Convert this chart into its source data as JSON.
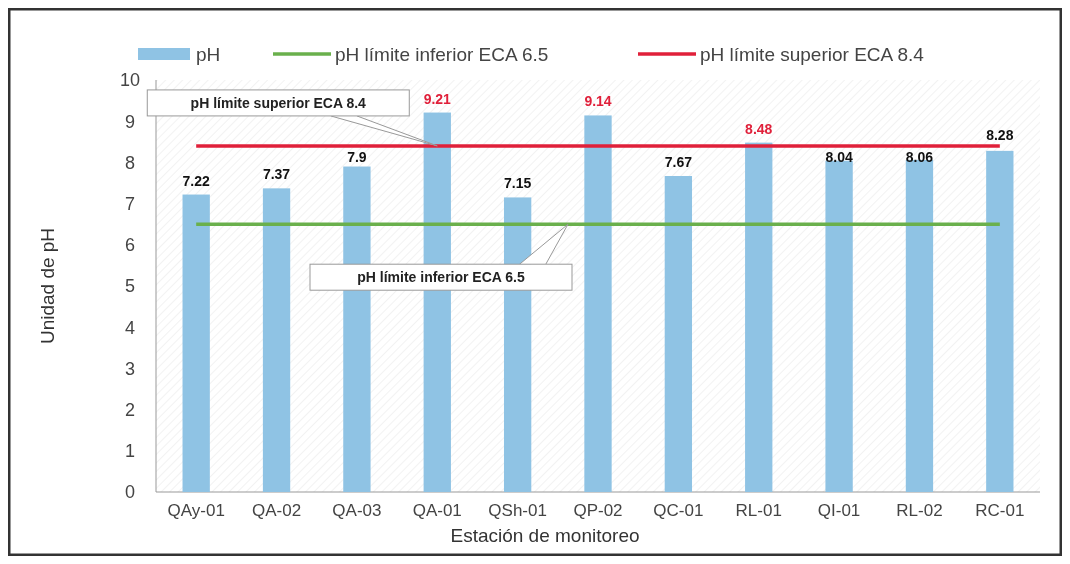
{
  "chart_data": {
    "type": "bar",
    "xlabel": "Estación de monitoreo",
    "ylabel": "Unidad de pH",
    "categories": [
      "QAy-01",
      "QA-02",
      "QA-03",
      "QA-01",
      "QSh-01",
      "QP-02",
      "QC-01",
      "RL-01",
      "QI-01",
      "RL-02",
      "RC-01"
    ],
    "series": [
      {
        "name": "pH",
        "color": "#8fc3e4",
        "values": [
          7.22,
          7.37,
          7.9,
          9.21,
          7.15,
          9.14,
          7.67,
          8.48,
          8.04,
          8.06,
          8.28
        ],
        "value_labels": [
          "7.22",
          "7.37",
          "7.9",
          "9.21",
          "7.15",
          "9.14",
          "7.67",
          "8.48",
          "8.04",
          "8.06",
          "8.28"
        ]
      },
      {
        "name": "pH límite inferior ECA 6.5",
        "type": "line",
        "color": "#6ab04c",
        "values": [
          6.5,
          6.5,
          6.5,
          6.5,
          6.5,
          6.5,
          6.5,
          6.5,
          6.5,
          6.5,
          6.5
        ]
      },
      {
        "name": "pH límite superior ECA 8.4",
        "type": "line",
        "color": "#e0203a",
        "values": [
          8.4,
          8.4,
          8.4,
          8.4,
          8.4,
          8.4,
          8.4,
          8.4,
          8.4,
          8.4,
          8.4
        ]
      }
    ],
    "ylim": [
      0,
      10
    ],
    "yticks": [
      0,
      1,
      2,
      3,
      4,
      5,
      6,
      7,
      8,
      9,
      10
    ],
    "grid": false,
    "legend": "top",
    "marker": "none",
    "line_style": "solid",
    "annotations": [
      "pH límite superior ECA 8.4",
      "pH límite inferior ECA 6.5"
    ]
  }
}
